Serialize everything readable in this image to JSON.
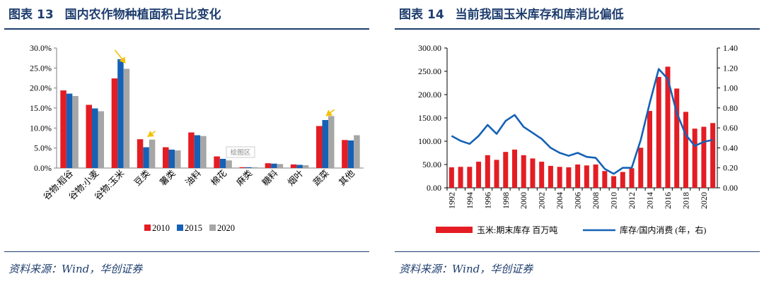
{
  "left": {
    "title_prefix": "图表",
    "title_number": "13",
    "title_text": "国内农作物种植面积占比变化",
    "source": "资料来源：Wind，华创证券",
    "watermark": "绘图区",
    "colors": {
      "s2010": "#e31d23",
      "s2015": "#1561b6",
      "s2020": "#a6a6a6",
      "arrow": "#f5c000",
      "title": "#1f3e6e"
    },
    "chart_data": {
      "type": "bar",
      "categories": [
        "谷物:稻谷",
        "谷物:小麦",
        "谷物:玉米",
        "豆类",
        "薯类",
        "油料",
        "棉花",
        "麻类",
        "糖料",
        "烟叶",
        "蔬菜",
        "其他"
      ],
      "series": [
        {
          "name": "2010",
          "values": [
            19.4,
            15.8,
            22.4,
            7.2,
            5.2,
            8.9,
            2.9,
            0.1,
            1.2,
            0.9,
            10.5,
            7.0
          ]
        },
        {
          "name": "2015",
          "values": [
            18.6,
            14.9,
            27.2,
            5.2,
            4.6,
            8.2,
            2.3,
            0.1,
            1.1,
            0.8,
            12.0,
            6.9
          ]
        },
        {
          "name": "2020",
          "values": [
            18.0,
            14.2,
            24.8,
            7.1,
            4.4,
            8.0,
            1.9,
            0.1,
            1.0,
            0.7,
            13.0,
            8.2
          ]
        }
      ],
      "ylim": [
        0,
        30
      ],
      "yticks": [
        "0.0%",
        "5.0%",
        "10.0%",
        "15.0%",
        "20.0%",
        "25.0%",
        "30.0%"
      ],
      "grid": false,
      "legend": "bottom",
      "annotations": [
        "arrow over 谷物:玉米 pointing to 2020 decrease",
        "arrow over 豆类 pointing to 2020 increase",
        "arrow over 蔬菜 pointing to 2020 increase"
      ]
    }
  },
  "right": {
    "title_prefix": "图表",
    "title_number": "14",
    "title_text": "当前我国玉米库存和库消比偏低",
    "source": "资料来源：Wind，华创证券",
    "colors": {
      "bar": "#e31d23",
      "line": "#1561b6",
      "title": "#1f3e6e"
    },
    "chart_data": {
      "type": "bar+line",
      "x": [
        1992,
        1993,
        1994,
        1995,
        1996,
        1997,
        1998,
        1999,
        2000,
        2001,
        2002,
        2003,
        2004,
        2005,
        2006,
        2007,
        2008,
        2009,
        2010,
        2011,
        2012,
        2013,
        2014,
        2015,
        2016,
        2017,
        2018,
        2019,
        2020,
        2021
      ],
      "xticks": [
        "1992",
        "1994",
        "1996",
        "1998",
        "2000",
        "2002",
        "2004",
        "2006",
        "2008",
        "2010",
        "2012",
        "2014",
        "2016",
        "2018",
        "2020"
      ],
      "series": [
        {
          "name": "玉米:期末库存 百万吨",
          "type": "bar",
          "axis": "left",
          "values": [
            44,
            45,
            45,
            56,
            70,
            60,
            77,
            82,
            70,
            63,
            56,
            47,
            45,
            44,
            50,
            48,
            50,
            36,
            25,
            34,
            42,
            86,
            165,
            238,
            260,
            213,
            163,
            127,
            131,
            139
          ]
        },
        {
          "name": "库存/国内消费 (年，右)",
          "type": "line",
          "axis": "right",
          "values": [
            0.52,
            0.47,
            0.44,
            0.52,
            0.63,
            0.54,
            0.67,
            0.73,
            0.61,
            0.55,
            0.49,
            0.4,
            0.35,
            0.32,
            0.35,
            0.31,
            0.3,
            0.19,
            0.14,
            0.2,
            0.2,
            0.48,
            0.85,
            1.19,
            1.09,
            0.75,
            0.53,
            0.42,
            0.46,
            0.48
          ]
        }
      ],
      "ylim": [
        0,
        300
      ],
      "yticks": [
        "0.00",
        "50.00",
        "100.00",
        "150.00",
        "200.00",
        "250.00",
        "300.00"
      ],
      "y2lim": [
        0,
        1.4
      ],
      "y2ticks": [
        "0.00",
        "0.20",
        "0.40",
        "0.60",
        "0.80",
        "1.00",
        "1.20",
        "1.40"
      ],
      "grid": false,
      "legend": "bottom"
    }
  }
}
